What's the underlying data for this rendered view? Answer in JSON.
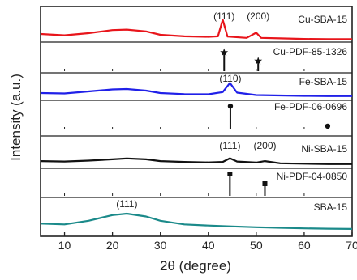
{
  "chart_data": {
    "type": "line",
    "xlabel": "2θ (degree)",
    "ylabel": "Intensity (a.u.)",
    "xlim": [
      5,
      70
    ],
    "xticks": [
      "10",
      "20",
      "30",
      "40",
      "50",
      "60",
      "70"
    ],
    "grid": false,
    "panels": [
      {
        "label": "Cu-SBA-15",
        "ref_label": "Cu-PDF-85-1326",
        "color": "#e8151b",
        "x": [
          5,
          10,
          15,
          20,
          23,
          27,
          30,
          35,
          40,
          42,
          43,
          44,
          48,
          50,
          51,
          55,
          60,
          65,
          70
        ],
        "y": [
          0.25,
          0.2,
          0.28,
          0.4,
          0.42,
          0.35,
          0.22,
          0.16,
          0.14,
          0.16,
          0.8,
          0.15,
          0.1,
          0.3,
          0.1,
          0.08,
          0.06,
          0.05,
          0.05
        ],
        "peaks": [
          {
            "x": 43.3,
            "label": "(111)"
          },
          {
            "x": 50.4,
            "label": "(200)"
          }
        ],
        "ref_lines": [
          {
            "x": 43.3,
            "h": 0.8,
            "marker": "star"
          },
          {
            "x": 50.4,
            "h": 0.45,
            "marker": "star"
          }
        ]
      },
      {
        "label": "Fe-SBA-15",
        "ref_label": "Fe-PDF-06-0696",
        "color": "#2020e8",
        "x": [
          5,
          10,
          15,
          20,
          23,
          27,
          30,
          35,
          40,
          43,
          44.5,
          46,
          50,
          55,
          60,
          65,
          70
        ],
        "y": [
          0.2,
          0.18,
          0.28,
          0.38,
          0.4,
          0.32,
          0.2,
          0.15,
          0.14,
          0.25,
          0.7,
          0.22,
          0.1,
          0.08,
          0.06,
          0.05,
          0.05
        ],
        "peaks": [
          {
            "x": 44.6,
            "label": "(110)"
          }
        ],
        "ref_lines": [
          {
            "x": 44.6,
            "h": 0.85,
            "marker": "circle"
          },
          {
            "x": 64.9,
            "h": 0.12,
            "marker": "circle"
          }
        ]
      },
      {
        "label": "Ni-SBA-15",
        "ref_label": "Ni-PDF-04-0850",
        "color": "#111111",
        "x": [
          5,
          10,
          15,
          20,
          23,
          27,
          30,
          35,
          40,
          43,
          44.5,
          46,
          50,
          51.8,
          55,
          60,
          65,
          70
        ],
        "y": [
          0.22,
          0.2,
          0.24,
          0.3,
          0.34,
          0.3,
          0.22,
          0.18,
          0.16,
          0.18,
          0.35,
          0.2,
          0.15,
          0.22,
          0.12,
          0.1,
          0.08,
          0.08
        ],
        "peaks": [
          {
            "x": 44.5,
            "label": "(111)"
          },
          {
            "x": 51.8,
            "label": "(200)"
          }
        ],
        "ref_lines": [
          {
            "x": 44.5,
            "h": 0.9,
            "marker": "square"
          },
          {
            "x": 51.8,
            "h": 0.5,
            "marker": "square"
          }
        ]
      },
      {
        "label": "SBA-15",
        "color": "#1b8a8a",
        "x": [
          5,
          10,
          15,
          20,
          23,
          27,
          30,
          35,
          40,
          45,
          50,
          55,
          60,
          65,
          70
        ],
        "y": [
          0.25,
          0.22,
          0.35,
          0.55,
          0.6,
          0.5,
          0.35,
          0.22,
          0.18,
          0.15,
          0.12,
          0.1,
          0.08,
          0.07,
          0.06
        ],
        "peaks": [
          {
            "x": 23,
            "label": "(111)"
          }
        ]
      }
    ]
  }
}
